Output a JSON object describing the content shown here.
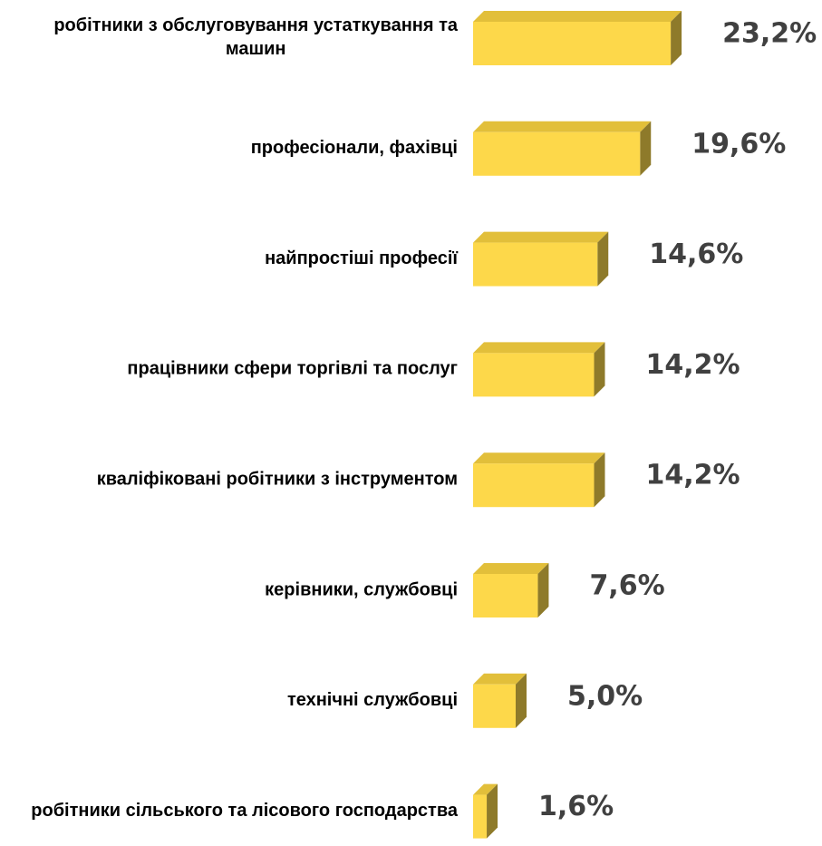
{
  "chart_data": {
    "type": "bar",
    "orientation": "horizontal",
    "categories": [
      "робітники з обслуговування устаткування та машин",
      "професіонали, фахівці",
      "найпростіші професії",
      "працівники сфери торгівлі та послуг",
      "кваліфіковані робітники з інструментом",
      "керівники, службовці",
      "технічні службовці",
      "робітники сільського та лісового господарства"
    ],
    "values": [
      23.2,
      19.6,
      14.6,
      14.2,
      14.2,
      7.6,
      5.0,
      1.6
    ],
    "value_labels": [
      "23,2%",
      "19,6%",
      "14,6%",
      "14,2%",
      "14,2%",
      "7,6%",
      "5,0%",
      "1,6%"
    ],
    "color": "#fdd84a"
  }
}
